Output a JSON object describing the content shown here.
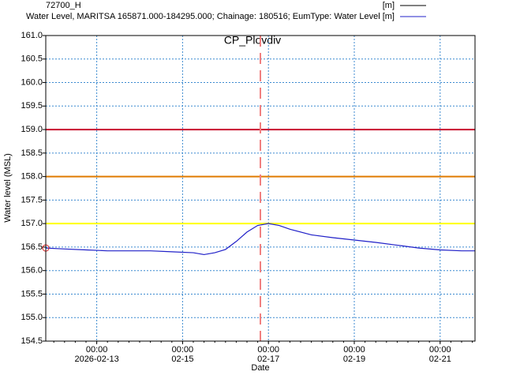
{
  "chart_data": {
    "type": "line",
    "title": "CP_Plovdiv",
    "legend_title": "72700_H",
    "legend_items": [
      {
        "name": "[m]",
        "color": "#000000"
      }
    ],
    "x_label": "Date",
    "y_label": "Water level (MSL)",
    "x": [
      "2026-02-11T19:30",
      "2026-02-12T06:00",
      "2026-02-12T18:00",
      "2026-02-13T06:00",
      "2026-02-13T18:00",
      "2026-02-14T06:00",
      "2026-02-14T18:00",
      "2026-02-15T06:00",
      "2026-02-15T12:00",
      "2026-02-15T18:00",
      "2026-02-16T00:00",
      "2026-02-16T06:00",
      "2026-02-16T12:00",
      "2026-02-16T18:00",
      "2026-02-17T00:00",
      "2026-02-17T06:00",
      "2026-02-17T12:00",
      "2026-02-18T00:00",
      "2026-02-18T12:00",
      "2026-02-19T00:00",
      "2026-02-19T12:00",
      "2026-02-20T00:00",
      "2026-02-20T12:00",
      "2026-02-21T00:00",
      "2026-02-21T12:00",
      "2026-02-21T19:30"
    ],
    "series": [
      {
        "name": "Water Level, MARITSA 165871.000-184295.000; Chainage: 180516; EumType: Water Level [m]",
        "color": "#2020c8",
        "values": [
          156.48,
          156.46,
          156.44,
          156.42,
          156.42,
          156.42,
          156.4,
          156.38,
          156.34,
          156.38,
          156.45,
          156.62,
          156.82,
          156.96,
          157.0,
          156.96,
          156.88,
          156.76,
          156.7,
          156.65,
          156.6,
          156.54,
          156.48,
          156.44,
          156.42,
          156.42
        ]
      }
    ],
    "xlim": [
      "2026-02-11T19:30",
      "2026-02-21T19:30"
    ],
    "xticks": [
      {
        "value": "2026-02-13T00:00",
        "label": [
          "00:00",
          "2026-02-13"
        ]
      },
      {
        "value": "2026-02-15T00:00",
        "label": [
          "00:00",
          "02-15"
        ]
      },
      {
        "value": "2026-02-17T00:00",
        "label": [
          "00:00",
          "02-17"
        ]
      },
      {
        "value": "2026-02-19T00:00",
        "label": [
          "00:00",
          "02-19"
        ]
      },
      {
        "value": "2026-02-21T00:00",
        "label": [
          "00:00",
          "02-21"
        ]
      }
    ],
    "ylim": [
      154.5,
      161
    ],
    "yticks": [
      {
        "value": 154.5,
        "label": "154.5"
      },
      {
        "value": 155,
        "label": "155.0"
      },
      155.5,
      {
        "value": 156,
        "label": "156.0"
      },
      156.5,
      {
        "value": 157,
        "label": "157.0"
      },
      157.5,
      {
        "value": 158,
        "label": "158.0"
      },
      158.5,
      {
        "value": 159,
        "label": "159.0"
      },
      159.5,
      {
        "value": 160,
        "label": "160.0"
      },
      160.5,
      {
        "value": 161,
        "label": "161.0"
      }
    ],
    "grid": true,
    "hlines": [
      {
        "value": 159,
        "color": "#c8102e"
      },
      {
        "value": 158,
        "color": "#e07b00"
      },
      {
        "value": 157,
        "color": "#ffff00"
      }
    ],
    "vline": {
      "value": "2026-02-16T19:30",
      "color": "#f08080"
    }
  }
}
